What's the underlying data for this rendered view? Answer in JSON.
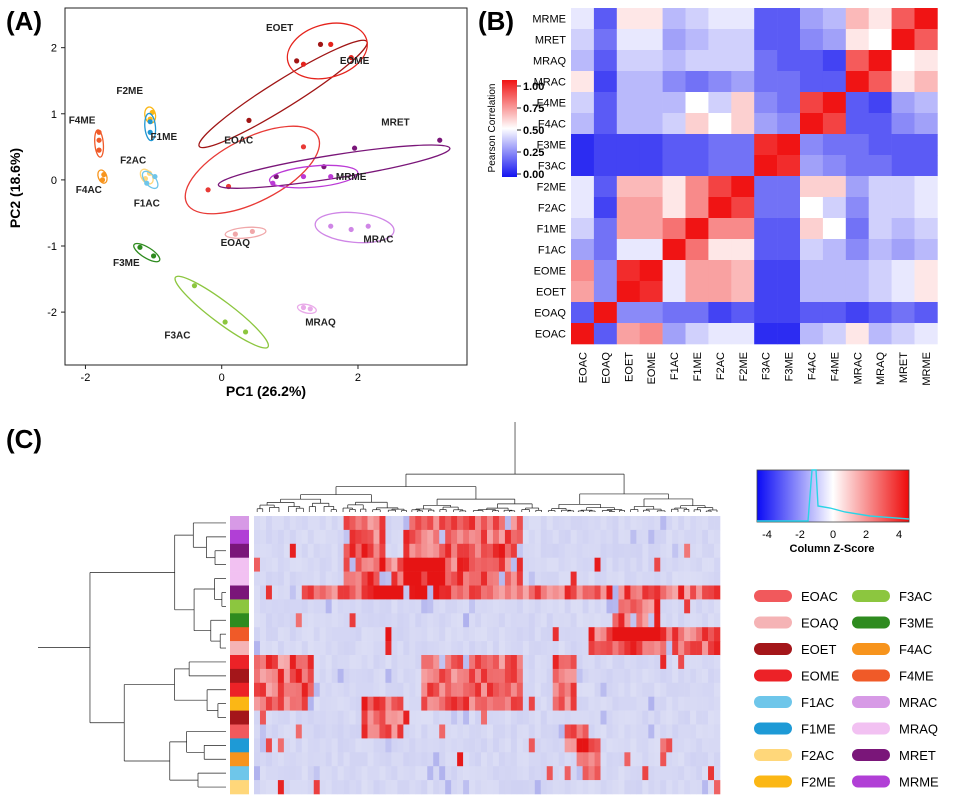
{
  "chart_data": [
    {
      "panel": "(A)",
      "type": "scatter",
      "xlabel": "PC1 (26.2%)",
      "ylabel": "PC2 (18.6%)",
      "xlim": [
        -2.3,
        3.6
      ],
      "ylim": [
        -2.8,
        2.6
      ],
      "xticks": [
        -2,
        0,
        2
      ],
      "yticks": [
        -2,
        -1,
        0,
        1,
        2
      ],
      "groups": [
        {
          "label": "EOET",
          "color": "#a01515",
          "cx": 0.9,
          "cy": 1.3,
          "rx": 1.45,
          "ry": 0.13,
          "angle": 32,
          "points": [
            [
              0.4,
              0.9
            ],
            [
              1.1,
              1.8
            ],
            [
              1.45,
              2.05
            ]
          ],
          "lx": 0.85,
          "ly": 2.25
        },
        {
          "label": "EOME",
          "color": "#e5231c",
          "cx": 1.55,
          "cy": 1.95,
          "rx": 0.6,
          "ry": 0.25,
          "angle": 16,
          "points": [
            [
              1.2,
              1.75
            ],
            [
              1.6,
              2.05
            ],
            [
              1.9,
              1.85
            ]
          ],
          "lx": 1.95,
          "ly": 1.75
        },
        {
          "label": "EOAC",
          "color": "#e83a36",
          "cx": 0.45,
          "cy": 0.15,
          "rx": 1.08,
          "ry": 0.3,
          "angle": 27,
          "points": [
            [
              -0.2,
              -0.15
            ],
            [
              0.1,
              -0.1
            ],
            [
              1.2,
              0.5
            ]
          ],
          "lx": 0.25,
          "ly": 0.55
        },
        {
          "label": "MRET",
          "color": "#7a1679",
          "cx": 1.65,
          "cy": 0.2,
          "rx": 1.72,
          "ry": 0.11,
          "angle": 9,
          "points": [
            [
              0.8,
              0.05
            ],
            [
              1.5,
              0.2
            ],
            [
              1.95,
              0.48
            ],
            [
              3.2,
              0.6
            ]
          ],
          "lx": 2.55,
          "ly": 0.82
        },
        {
          "label": "MRME",
          "color": "#bb3ad6",
          "cx": 1.35,
          "cy": 0.05,
          "rx": 0.65,
          "ry": 0.1,
          "angle": 5,
          "points": [
            [
              0.75,
              -0.05
            ],
            [
              1.2,
              0.05
            ],
            [
              1.6,
              0.05
            ]
          ],
          "lx": 1.9,
          "ly": 0.0
        },
        {
          "label": "MRAC",
          "color": "#cf86e6",
          "cx": 1.95,
          "cy": -0.72,
          "rx": 0.58,
          "ry": 0.14,
          "angle": -5,
          "points": [
            [
              1.6,
              -0.7
            ],
            [
              1.9,
              -0.75
            ],
            [
              2.15,
              -0.7
            ]
          ],
          "lx": 2.3,
          "ly": -0.95
        },
        {
          "label": "MRAQ",
          "color": "#e9aae9",
          "cx": 1.25,
          "cy": -1.95,
          "rx": 0.14,
          "ry": 0.04,
          "angle": -12,
          "points": [
            [
              1.2,
              -1.93
            ],
            [
              1.3,
              -1.95
            ]
          ],
          "lx": 1.45,
          "ly": -2.2
        },
        {
          "label": "EOAQ",
          "color": "#f0a7a9",
          "cx": 0.35,
          "cy": -0.8,
          "rx": 0.3,
          "ry": 0.05,
          "angle": 5,
          "points": [
            [
              0.2,
              -0.82
            ],
            [
              0.45,
              -0.78
            ]
          ],
          "lx": 0.2,
          "ly": -1.0
        },
        {
          "label": "F3AC",
          "color": "#8cc63f",
          "cx": 0.0,
          "cy": -2.0,
          "rx": 0.85,
          "ry": 0.1,
          "angle": -37,
          "points": [
            [
              -0.4,
              -1.6
            ],
            [
              0.05,
              -2.15
            ],
            [
              0.35,
              -2.3
            ]
          ],
          "lx": -0.65,
          "ly": -2.4
        },
        {
          "label": "F3ME",
          "color": "#2e8b1f",
          "cx": -1.1,
          "cy": -1.1,
          "rx": 0.22,
          "ry": 0.05,
          "angle": -32,
          "points": [
            [
              -1.2,
              -1.02
            ],
            [
              -1.0,
              -1.15
            ]
          ],
          "lx": -1.4,
          "ly": -1.3
        },
        {
          "label": "F4ME",
          "color": "#f05a28",
          "cx": -1.8,
          "cy": 0.55,
          "rx": 0.2,
          "ry": 0.04,
          "angle": -85,
          "points": [
            [
              -1.8,
              0.45
            ],
            [
              -1.8,
              0.6
            ],
            [
              -1.8,
              0.72
            ]
          ],
          "lx": -2.05,
          "ly": 0.85
        },
        {
          "label": "F4AC",
          "color": "#f7941d",
          "cx": -1.75,
          "cy": 0.05,
          "rx": 0.1,
          "ry": 0.04,
          "angle": -70,
          "points": [
            [
              -1.75,
              0.0
            ],
            [
              -1.73,
              0.08
            ]
          ],
          "lx": -1.95,
          "ly": -0.2
        },
        {
          "label": "F2ME",
          "color": "#fbb715",
          "cx": -1.05,
          "cy": 0.98,
          "rx": 0.12,
          "ry": 0.05,
          "angle": -80,
          "points": [
            [
              -1.05,
              0.92
            ],
            [
              -1.02,
              1.02
            ]
          ],
          "lx": -1.35,
          "ly": 1.3
        },
        {
          "label": "F1ME",
          "color": "#1f96d2",
          "cx": -1.05,
          "cy": 0.8,
          "rx": 0.2,
          "ry": 0.05,
          "angle": -85,
          "points": [
            [
              -1.05,
              0.72
            ],
            [
              -1.05,
              0.88
            ]
          ],
          "lx": -0.85,
          "ly": 0.6
        },
        {
          "label": "F2AC",
          "color": "#ffd77a",
          "cx": -1.1,
          "cy": 0.05,
          "rx": 0.12,
          "ry": 0.05,
          "angle": -55,
          "points": [
            [
              -1.12,
              0.02
            ],
            [
              -1.06,
              0.1
            ]
          ],
          "lx": -1.3,
          "ly": 0.25
        },
        {
          "label": "F1AC",
          "color": "#6ec5ea",
          "cx": -1.05,
          "cy": 0.0,
          "rx": 0.15,
          "ry": 0.05,
          "angle": -50,
          "points": [
            [
              -1.1,
              -0.05
            ],
            [
              -0.98,
              0.05
            ]
          ],
          "lx": -1.1,
          "ly": -0.4
        }
      ]
    },
    {
      "panel": "(B)",
      "type": "heatmap",
      "labels": [
        "EOAC",
        "EOAQ",
        "EOET",
        "EOME",
        "F1AC",
        "F1ME",
        "F2AC",
        "F2ME",
        "F3AC",
        "F3ME",
        "F4AC",
        "F4ME",
        "MRAC",
        "MRAQ",
        "MRET",
        "MRME"
      ],
      "colorbar_title": "Pearson Correlation",
      "colorbar_ticks": [
        "1.00",
        "0.75",
        "0.50",
        "0.25",
        "0.00"
      ],
      "values": [
        [
          1.0,
          0.15,
          0.7,
          0.75,
          0.3,
          0.4,
          0.45,
          0.45,
          0.05,
          0.05,
          0.35,
          0.4,
          0.55,
          0.35,
          0.4,
          0.45
        ],
        [
          0.15,
          1.0,
          0.25,
          0.25,
          0.2,
          0.2,
          0.1,
          0.15,
          0.1,
          0.1,
          0.15,
          0.15,
          0.1,
          0.15,
          0.2,
          0.15
        ],
        [
          0.7,
          0.25,
          1.0,
          0.95,
          0.45,
          0.7,
          0.7,
          0.65,
          0.1,
          0.1,
          0.35,
          0.35,
          0.35,
          0.4,
          0.45,
          0.55
        ],
        [
          0.75,
          0.25,
          0.95,
          1.0,
          0.45,
          0.7,
          0.7,
          0.65,
          0.1,
          0.1,
          0.35,
          0.35,
          0.35,
          0.4,
          0.45,
          0.55
        ],
        [
          0.3,
          0.2,
          0.45,
          0.45,
          1.0,
          0.8,
          0.55,
          0.55,
          0.15,
          0.15,
          0.4,
          0.35,
          0.25,
          0.35,
          0.3,
          0.35
        ],
        [
          0.4,
          0.2,
          0.7,
          0.7,
          0.8,
          1.0,
          0.75,
          0.75,
          0.15,
          0.15,
          0.6,
          0.5,
          0.2,
          0.4,
          0.35,
          0.4
        ],
        [
          0.45,
          0.1,
          0.7,
          0.7,
          0.55,
          0.75,
          1.0,
          0.9,
          0.2,
          0.2,
          0.5,
          0.4,
          0.25,
          0.4,
          0.4,
          0.45
        ],
        [
          0.45,
          0.15,
          0.65,
          0.65,
          0.55,
          0.75,
          0.9,
          1.0,
          0.2,
          0.2,
          0.6,
          0.6,
          0.3,
          0.4,
          0.4,
          0.45
        ],
        [
          0.05,
          0.1,
          0.1,
          0.1,
          0.15,
          0.15,
          0.2,
          0.2,
          1.0,
          0.95,
          0.3,
          0.25,
          0.2,
          0.2,
          0.15,
          0.15
        ],
        [
          0.05,
          0.1,
          0.1,
          0.1,
          0.15,
          0.15,
          0.2,
          0.2,
          0.95,
          1.0,
          0.25,
          0.2,
          0.2,
          0.15,
          0.15,
          0.15
        ],
        [
          0.35,
          0.15,
          0.35,
          0.35,
          0.4,
          0.6,
          0.5,
          0.6,
          0.3,
          0.25,
          1.0,
          0.9,
          0.15,
          0.15,
          0.25,
          0.3
        ],
        [
          0.4,
          0.15,
          0.35,
          0.35,
          0.35,
          0.5,
          0.4,
          0.6,
          0.25,
          0.2,
          0.9,
          1.0,
          0.15,
          0.1,
          0.3,
          0.35
        ],
        [
          0.55,
          0.1,
          0.35,
          0.35,
          0.25,
          0.2,
          0.25,
          0.3,
          0.2,
          0.2,
          0.15,
          0.15,
          1.0,
          0.85,
          0.55,
          0.65
        ],
        [
          0.35,
          0.15,
          0.4,
          0.4,
          0.35,
          0.4,
          0.4,
          0.4,
          0.2,
          0.15,
          0.15,
          0.1,
          0.85,
          1.0,
          0.5,
          0.55
        ],
        [
          0.4,
          0.2,
          0.45,
          0.45,
          0.3,
          0.35,
          0.4,
          0.4,
          0.15,
          0.15,
          0.25,
          0.3,
          0.55,
          0.5,
          1.0,
          0.85
        ],
        [
          0.45,
          0.15,
          0.55,
          0.55,
          0.35,
          0.4,
          0.45,
          0.45,
          0.15,
          0.15,
          0.3,
          0.35,
          0.65,
          0.55,
          0.85,
          1.0
        ]
      ]
    },
    {
      "panel": "(C)",
      "type": "heatmap",
      "colorbar_title": "Column Z-Score",
      "colorbar_ticks": [
        "-4",
        "-2",
        "0",
        "2",
        "4"
      ],
      "legend": [
        {
          "label": "EOAC",
          "color": "#f1595c"
        },
        {
          "label": "EOAQ",
          "color": "#f5b3b5"
        },
        {
          "label": "EOET",
          "color": "#a4161a"
        },
        {
          "label": "EOME",
          "color": "#ec2227"
        },
        {
          "label": "F1AC",
          "color": "#6ec6ea"
        },
        {
          "label": "F1ME",
          "color": "#1e9ad6"
        },
        {
          "label": "F2AC",
          "color": "#ffd77a"
        },
        {
          "label": "F2ME",
          "color": "#fbb715"
        },
        {
          "label": "F3AC",
          "color": "#8cc63f"
        },
        {
          "label": "F3ME",
          "color": "#2e8b1f"
        },
        {
          "label": "F4AC",
          "color": "#f7941d"
        },
        {
          "label": "F4ME",
          "color": "#f05a28"
        },
        {
          "label": "MRAC",
          "color": "#d79ae6"
        },
        {
          "label": "MRAQ",
          "color": "#f2c1f2"
        },
        {
          "label": "MRET",
          "color": "#7a1679"
        },
        {
          "label": "MRME",
          "color": "#b13fd6"
        }
      ],
      "row_groups": [
        "MRAC",
        "MRME",
        "MRET",
        "MRAQ",
        "MRAQ",
        "MRET",
        "F3AC",
        "F3ME",
        "F4ME",
        "EOAQ",
        "EOME",
        "EOET",
        "EOME",
        "F2ME",
        "EOET",
        "EOAC",
        "F1ME",
        "F4AC",
        "F1AC",
        "F2AC"
      ]
    }
  ]
}
